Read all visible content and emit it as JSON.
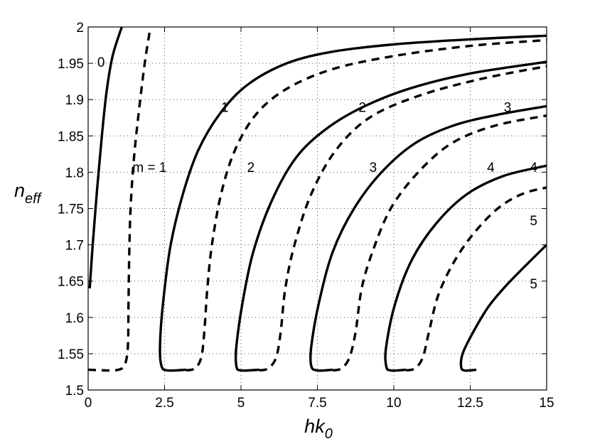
{
  "chart_data": {
    "type": "line",
    "title": "",
    "xlabel": {
      "base": "hk",
      "sub": "0"
    },
    "ylabel": {
      "base": "n",
      "sub": "eff"
    },
    "xlim": [
      0,
      15
    ],
    "ylim": [
      1.5,
      2.0
    ],
    "grid": true,
    "x_ticks": [
      "0",
      "2.5",
      "5",
      "7.5",
      "10",
      "12.5",
      "15"
    ],
    "y_ticks": [
      "1.5",
      "1.55",
      "1.6",
      "1.65",
      "1.7",
      "1.75",
      "1.8",
      "1.85",
      "1.9",
      "1.95",
      "2"
    ],
    "series": [
      {
        "style": "solid",
        "points": [
          [
            0.05,
            1.64
          ],
          [
            0.15,
            1.7
          ],
          [
            0.3,
            1.78
          ],
          [
            0.45,
            1.85
          ],
          [
            0.6,
            1.91
          ],
          [
            0.8,
            1.96
          ],
          [
            1.1,
            2.0
          ]
        ]
      },
      {
        "style": "dashed",
        "points": [
          [
            0.0,
            1.528
          ],
          [
            0.6,
            1.527
          ],
          [
            1.0,
            1.528
          ],
          [
            1.2,
            1.535
          ],
          [
            1.3,
            1.56
          ],
          [
            1.32,
            1.62
          ],
          [
            1.35,
            1.7
          ],
          [
            1.4,
            1.76
          ],
          [
            1.5,
            1.82
          ],
          [
            1.65,
            1.88
          ],
          [
            1.85,
            1.95
          ],
          [
            2.0,
            1.99
          ],
          [
            2.05,
            2.0
          ]
        ]
      },
      {
        "style": "solid",
        "points": [
          [
            3.2,
            1.528
          ],
          [
            2.6,
            1.527
          ],
          [
            2.4,
            1.533
          ],
          [
            2.35,
            1.56
          ],
          [
            2.45,
            1.62
          ],
          [
            2.7,
            1.7
          ],
          [
            3.1,
            1.77
          ],
          [
            3.6,
            1.83
          ],
          [
            4.3,
            1.88
          ],
          [
            5.2,
            1.92
          ],
          [
            6.5,
            1.95
          ],
          [
            8,
            1.966
          ],
          [
            10,
            1.976
          ],
          [
            12.5,
            1.983
          ],
          [
            15,
            1.988
          ]
        ]
      },
      {
        "style": "dashed",
        "points": [
          [
            3.2,
            1.527
          ],
          [
            3.5,
            1.53
          ],
          [
            3.7,
            1.545
          ],
          [
            3.8,
            1.58
          ],
          [
            3.9,
            1.64
          ],
          [
            4.05,
            1.7
          ],
          [
            4.35,
            1.77
          ],
          [
            4.8,
            1.83
          ],
          [
            5.5,
            1.88
          ],
          [
            6.5,
            1.915
          ],
          [
            8,
            1.942
          ],
          [
            10,
            1.96
          ],
          [
            12.5,
            1.974
          ],
          [
            15,
            1.982
          ]
        ]
      },
      {
        "style": "solid",
        "points": [
          [
            5.6,
            1.528
          ],
          [
            5.0,
            1.527
          ],
          [
            4.85,
            1.533
          ],
          [
            4.85,
            1.56
          ],
          [
            5.05,
            1.62
          ],
          [
            5.4,
            1.69
          ],
          [
            6.0,
            1.76
          ],
          [
            6.8,
            1.82
          ],
          [
            7.8,
            1.86
          ],
          [
            9.0,
            1.89
          ],
          [
            10.5,
            1.915
          ],
          [
            12.5,
            1.936
          ],
          [
            15,
            1.952
          ]
        ]
      },
      {
        "style": "dashed",
        "points": [
          [
            5.6,
            1.527
          ],
          [
            5.9,
            1.53
          ],
          [
            6.15,
            1.545
          ],
          [
            6.3,
            1.58
          ],
          [
            6.45,
            1.64
          ],
          [
            6.75,
            1.7
          ],
          [
            7.3,
            1.77
          ],
          [
            8.1,
            1.83
          ],
          [
            9.2,
            1.875
          ],
          [
            10.8,
            1.905
          ],
          [
            12.8,
            1.928
          ],
          [
            15,
            1.946
          ]
        ]
      },
      {
        "style": "solid",
        "points": [
          [
            8.0,
            1.528
          ],
          [
            7.5,
            1.527
          ],
          [
            7.3,
            1.533
          ],
          [
            7.3,
            1.56
          ],
          [
            7.55,
            1.62
          ],
          [
            8.0,
            1.69
          ],
          [
            8.7,
            1.75
          ],
          [
            9.6,
            1.8
          ],
          [
            10.7,
            1.84
          ],
          [
            12,
            1.865
          ],
          [
            13.5,
            1.88
          ],
          [
            15,
            1.891
          ]
        ]
      },
      {
        "style": "dashed",
        "points": [
          [
            8.0,
            1.527
          ],
          [
            8.3,
            1.53
          ],
          [
            8.55,
            1.545
          ],
          [
            8.75,
            1.58
          ],
          [
            8.95,
            1.64
          ],
          [
            9.3,
            1.69
          ],
          [
            9.9,
            1.75
          ],
          [
            10.8,
            1.8
          ],
          [
            11.9,
            1.84
          ],
          [
            13.3,
            1.864
          ],
          [
            15,
            1.878
          ]
        ]
      },
      {
        "style": "solid",
        "points": [
          [
            10.4,
            1.528
          ],
          [
            9.9,
            1.527
          ],
          [
            9.75,
            1.533
          ],
          [
            9.75,
            1.56
          ],
          [
            10.05,
            1.62
          ],
          [
            10.6,
            1.68
          ],
          [
            11.4,
            1.73
          ],
          [
            12.4,
            1.77
          ],
          [
            13.6,
            1.795
          ],
          [
            15,
            1.809
          ]
        ]
      },
      {
        "style": "dashed",
        "points": [
          [
            10.4,
            1.527
          ],
          [
            10.7,
            1.53
          ],
          [
            10.95,
            1.545
          ],
          [
            11.15,
            1.58
          ],
          [
            11.45,
            1.63
          ],
          [
            11.95,
            1.675
          ],
          [
            12.6,
            1.715
          ],
          [
            13.4,
            1.75
          ],
          [
            14.2,
            1.77
          ],
          [
            15,
            1.779
          ]
        ]
      },
      {
        "style": "solid",
        "points": [
          [
            12.7,
            1.528
          ],
          [
            12.3,
            1.527
          ],
          [
            12.2,
            1.533
          ],
          [
            12.25,
            1.55
          ],
          [
            12.6,
            1.58
          ],
          [
            13.1,
            1.615
          ],
          [
            13.7,
            1.645
          ],
          [
            14.4,
            1.675
          ],
          [
            15,
            1.7
          ]
        ]
      }
    ],
    "annotations": [
      {
        "text": "0",
        "x": 0.3,
        "y": 1.952
      },
      {
        "text": "m = 1",
        "x": 1.45,
        "y": 1.807
      },
      {
        "text": "1",
        "x": 4.35,
        "y": 1.89
      },
      {
        "text": "2",
        "x": 5.2,
        "y": 1.807
      },
      {
        "text": "2",
        "x": 8.85,
        "y": 1.89
      },
      {
        "text": "3",
        "x": 9.2,
        "y": 1.807
      },
      {
        "text": "3",
        "x": 13.6,
        "y": 1.89
      },
      {
        "text": "4",
        "x": 13.05,
        "y": 1.807
      },
      {
        "text": "4",
        "x": 14.45,
        "y": 1.807
      },
      {
        "text": "5",
        "x": 14.45,
        "y": 1.734
      },
      {
        "text": "5",
        "x": 14.45,
        "y": 1.647
      }
    ]
  }
}
